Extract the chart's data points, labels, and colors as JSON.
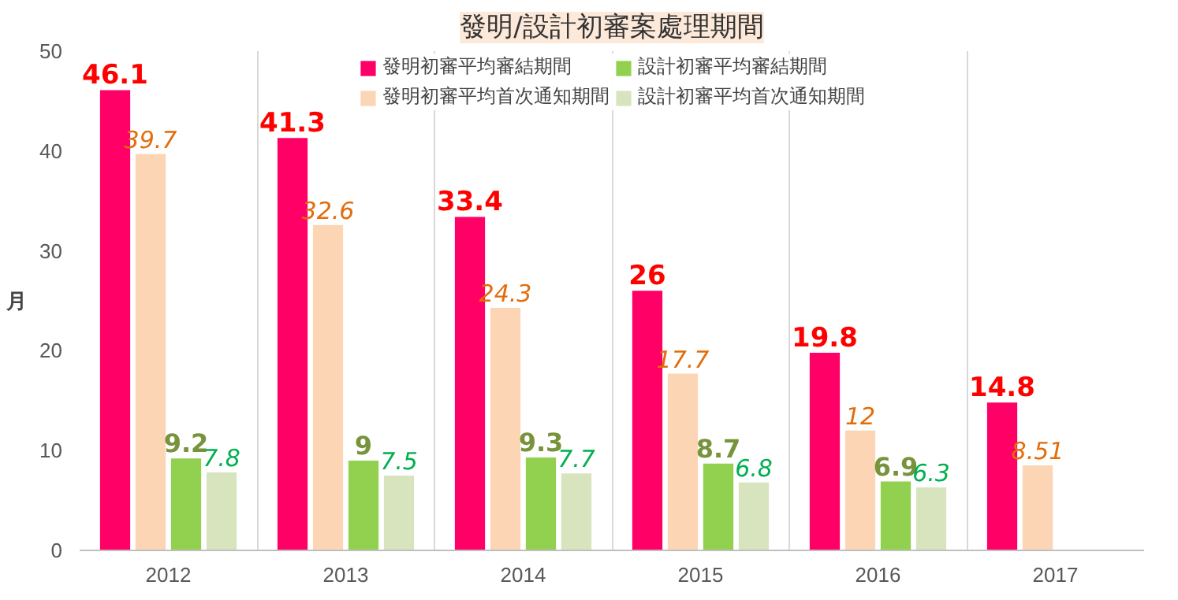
{
  "chart_data": {
    "type": "bar",
    "title": "發明/設計初審案處理期間",
    "ylabel": "月",
    "categories": [
      "2012",
      "2013",
      "2014",
      "2015",
      "2016",
      "2017"
    ],
    "series": [
      {
        "name": "發明初審平均審結期間",
        "color": "#ff0066",
        "values": [
          46.1,
          41.3,
          33.4,
          26,
          19.8,
          14.8
        ]
      },
      {
        "name": "發明初審平均首次通知期間",
        "color": "#fcd5b5",
        "values": [
          39.7,
          32.6,
          24.3,
          17.7,
          12,
          8.51
        ]
      },
      {
        "name": "設計初審平均審結期間",
        "color": "#92d050",
        "values": [
          9.2,
          9,
          9.3,
          8.7,
          6.9,
          null
        ]
      },
      {
        "name": "設計初審平均首次通知期間",
        "color": "#d7e4bd",
        "values": [
          7.8,
          7.5,
          7.7,
          6.8,
          6.3,
          null
        ]
      }
    ],
    "ylim": [
      0,
      50
    ],
    "yticks": [
      0,
      10,
      20,
      30,
      40,
      50
    ],
    "grid": "x",
    "legend": "top",
    "data_labels": true
  }
}
